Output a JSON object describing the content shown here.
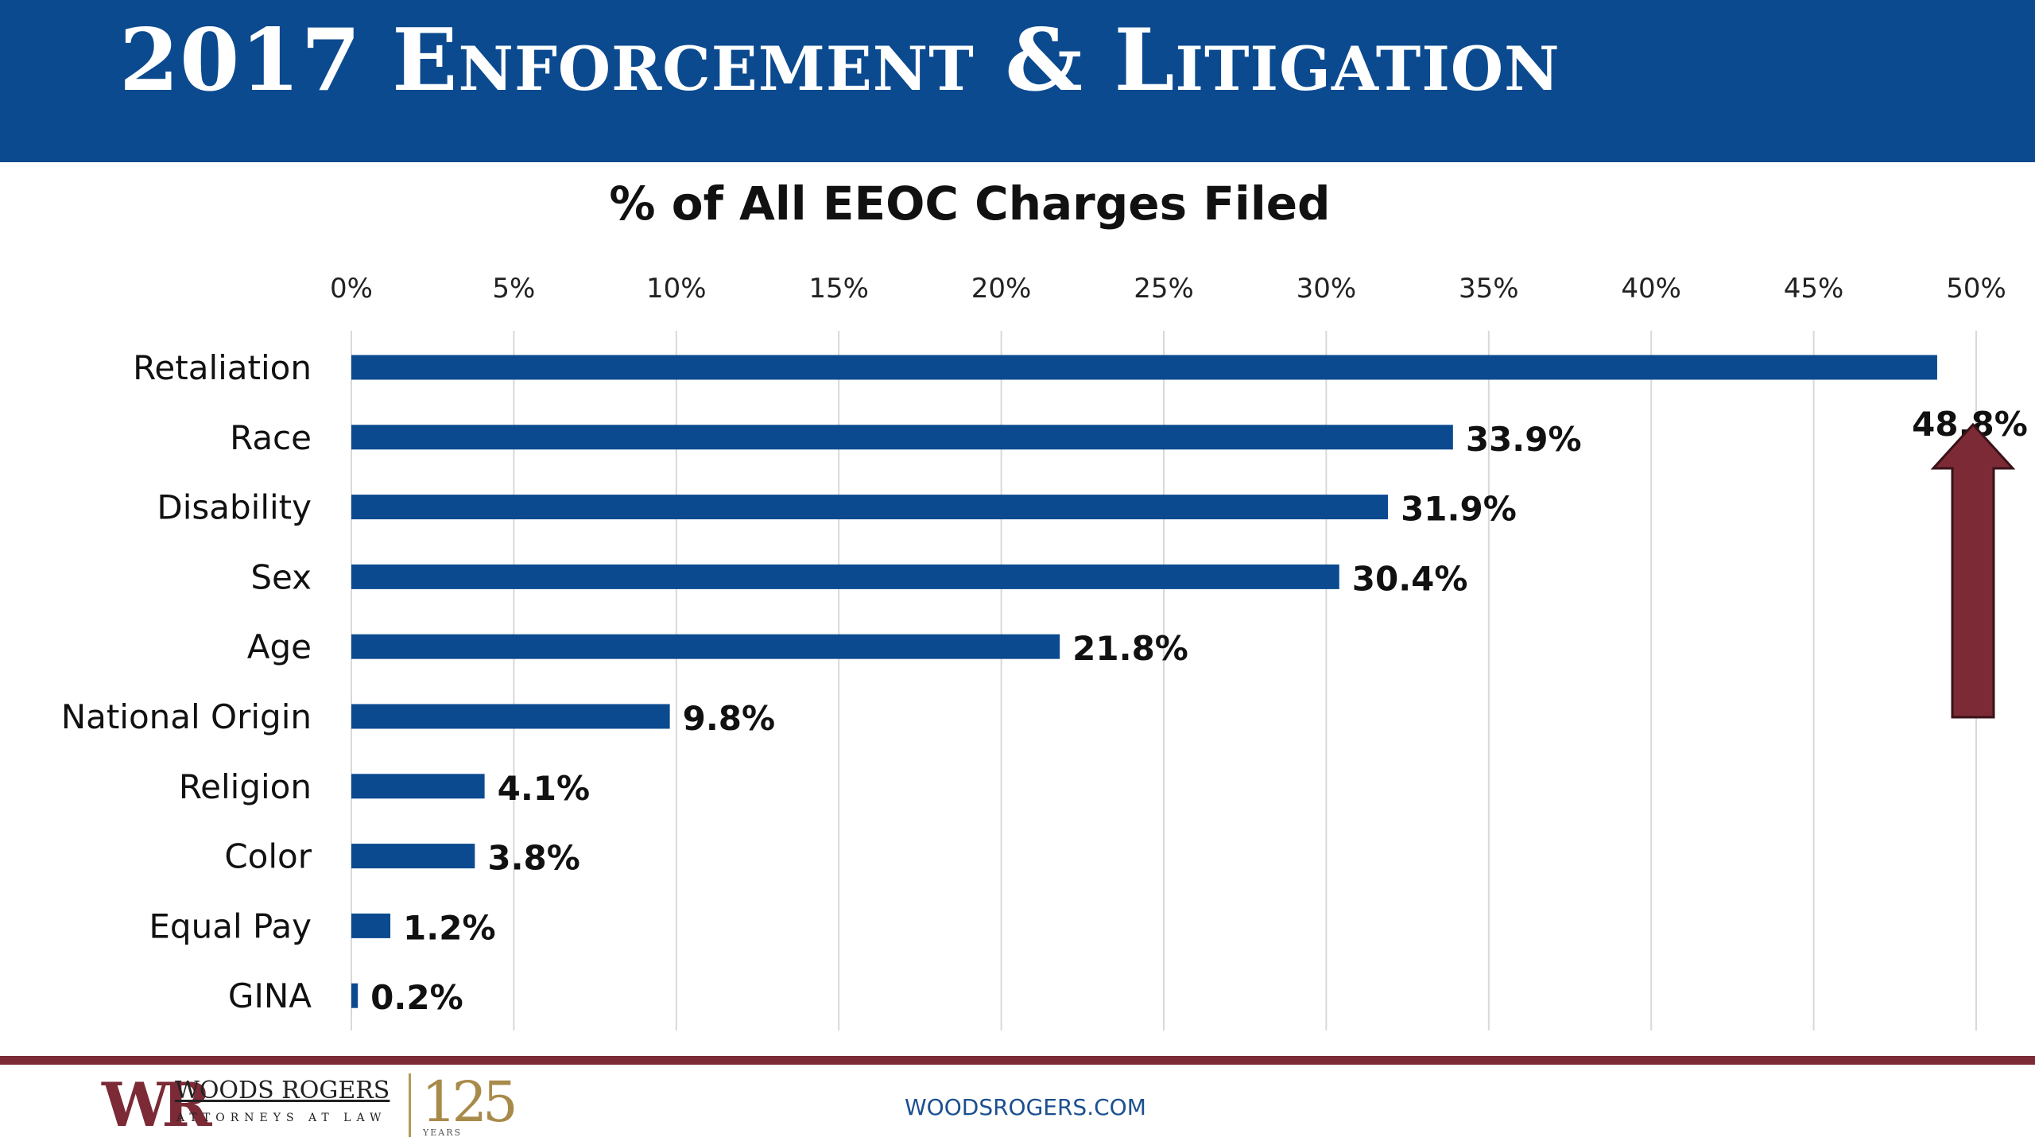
{
  "header": {
    "title": "2017 Enforcement & Litigation"
  },
  "chart_data": {
    "type": "bar",
    "orientation": "horizontal",
    "title": "% of All EEOC Charges Filed",
    "categories": [
      "Retaliation",
      "Race",
      "Disability",
      "Sex",
      "Age",
      "National Origin",
      "Religion",
      "Color",
      "Equal Pay",
      "GINA"
    ],
    "values": [
      48.8,
      33.9,
      31.9,
      30.4,
      21.8,
      9.8,
      4.1,
      3.8,
      1.2,
      0.2
    ],
    "data_labels": [
      "48.8%",
      "33.9%",
      "31.9%",
      "30.4%",
      "21.8%",
      "9.8%",
      "4.1%",
      "3.8%",
      "1.2%",
      "0.2%"
    ],
    "xlim": [
      0,
      50
    ],
    "ticks": [
      0,
      5,
      10,
      15,
      20,
      25,
      30,
      35,
      40,
      45,
      50
    ],
    "tick_labels": [
      "0%",
      "5%",
      "10%",
      "15%",
      "20%",
      "25%",
      "30%",
      "35%",
      "40%",
      "45%",
      "50%"
    ],
    "axis_position": "top",
    "grid": true,
    "bar_color": "#0b4a8f",
    "annotation": {
      "type": "up-arrow",
      "target": "Retaliation",
      "color": "#7b2a36"
    }
  },
  "footer": {
    "logo_mark": "WR",
    "logo_name": "WOODS ROGERS",
    "logo_sub": "ATTORNEYS AT LAW",
    "anniversary": "125",
    "anniversary_sub": "YEARS",
    "website": "WOODSROGERS.COM",
    "accent_color": "#7b2a36"
  }
}
